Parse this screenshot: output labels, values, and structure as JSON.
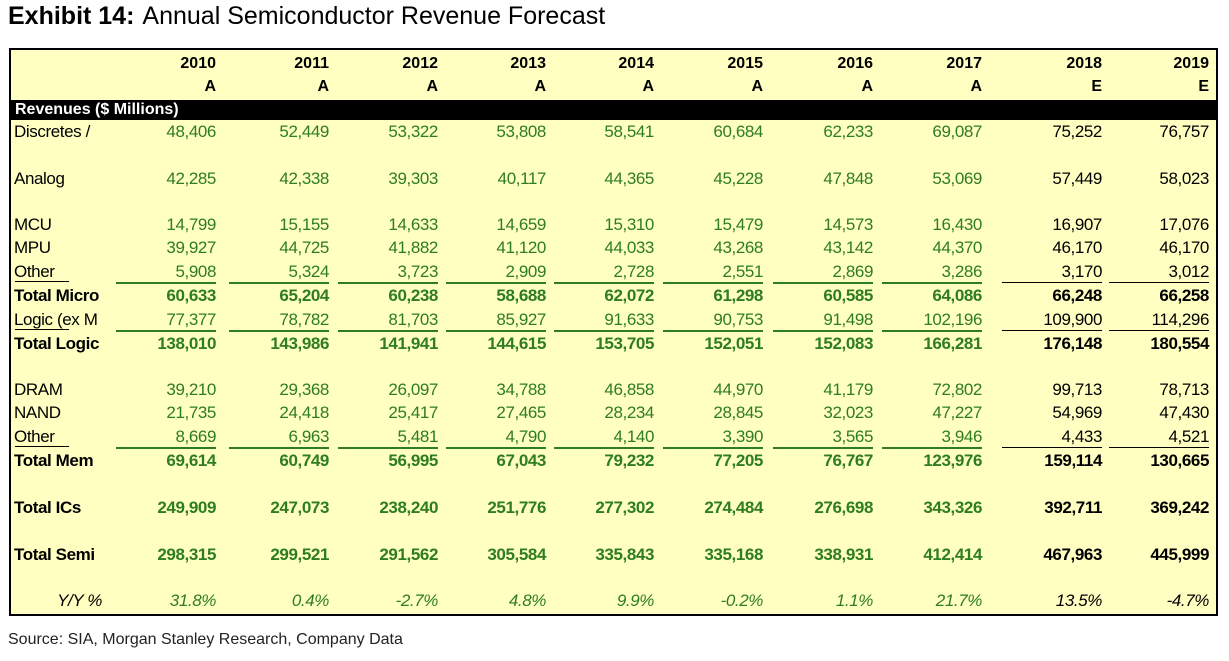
{
  "title": {
    "exhibit": "Exhibit 14:",
    "text": "Annual Semiconductor Revenue Forecast"
  },
  "source": "Source: SIA, Morgan Stanley Research, Company Data",
  "colors": {
    "background": "#ffffc2",
    "actual_text": "#2e7d1f",
    "estimate_text": "#000000",
    "band": "#000000"
  },
  "chart_data": {
    "type": "table",
    "section_header": "Revenues ($ Millions)",
    "years": [
      "2010",
      "2011",
      "2012",
      "2013",
      "2014",
      "2015",
      "2016",
      "2017",
      "2018",
      "2019"
    ],
    "flags": [
      "A",
      "A",
      "A",
      "A",
      "A",
      "A",
      "A",
      "A",
      "E",
      "E"
    ],
    "rows": [
      {
        "label": "Discretes /",
        "values": [
          "48,406",
          "52,449",
          "53,322",
          "53,808",
          "58,541",
          "60,684",
          "62,233",
          "69,087",
          "75,252",
          "76,757"
        ]
      },
      {
        "label": "Analog",
        "values": [
          "42,285",
          "42,338",
          "39,303",
          "40,117",
          "44,365",
          "45,228",
          "47,848",
          "53,069",
          "57,449",
          "58,023"
        ]
      },
      {
        "label": "MCU",
        "values": [
          "14,799",
          "15,155",
          "14,633",
          "14,659",
          "15,310",
          "15,479",
          "14,573",
          "16,430",
          "16,907",
          "17,076"
        ]
      },
      {
        "label": "MPU",
        "values": [
          "39,927",
          "44,725",
          "41,882",
          "41,120",
          "44,033",
          "43,268",
          "43,142",
          "44,370",
          "46,170",
          "46,170"
        ]
      },
      {
        "label": "Other",
        "values": [
          "5,908",
          "5,324",
          "3,723",
          "2,909",
          "2,728",
          "2,551",
          "2,869",
          "3,286",
          "3,170",
          "3,012"
        ]
      },
      {
        "label": "Total Micro",
        "values": [
          "60,633",
          "65,204",
          "60,238",
          "58,688",
          "62,072",
          "61,298",
          "60,585",
          "64,086",
          "66,248",
          "66,258"
        ]
      },
      {
        "label": "Logic (ex M",
        "values": [
          "77,377",
          "78,782",
          "81,703",
          "85,927",
          "91,633",
          "90,753",
          "91,498",
          "102,196",
          "109,900",
          "114,296"
        ]
      },
      {
        "label": "Total Logic",
        "values": [
          "138,010",
          "143,986",
          "141,941",
          "144,615",
          "153,705",
          "152,051",
          "152,083",
          "166,281",
          "176,148",
          "180,554"
        ]
      },
      {
        "label": "DRAM",
        "values": [
          "39,210",
          "29,368",
          "26,097",
          "34,788",
          "46,858",
          "44,970",
          "41,179",
          "72,802",
          "99,713",
          "78,713"
        ]
      },
      {
        "label": "NAND",
        "values": [
          "21,735",
          "24,418",
          "25,417",
          "27,465",
          "28,234",
          "28,845",
          "32,023",
          "47,227",
          "54,969",
          "47,430"
        ]
      },
      {
        "label": "Other",
        "values": [
          "8,669",
          "6,963",
          "5,481",
          "4,790",
          "4,140",
          "3,390",
          "3,565",
          "3,946",
          "4,433",
          "4,521"
        ]
      },
      {
        "label": "Total Mem",
        "values": [
          "69,614",
          "60,749",
          "56,995",
          "67,043",
          "79,232",
          "77,205",
          "76,767",
          "123,976",
          "159,114",
          "130,665"
        ]
      },
      {
        "label": "Total ICs",
        "values": [
          "249,909",
          "247,073",
          "238,240",
          "251,776",
          "277,302",
          "274,484",
          "276,698",
          "343,326",
          "392,711",
          "369,242"
        ]
      },
      {
        "label": "Total Semi",
        "values": [
          "298,315",
          "299,521",
          "291,562",
          "305,584",
          "335,843",
          "335,168",
          "338,931",
          "412,414",
          "467,963",
          "445,999"
        ]
      },
      {
        "label": "Y/Y %",
        "values": [
          "31.8%",
          "0.4%",
          "-2.7%",
          "4.8%",
          "9.9%",
          "-0.2%",
          "1.1%",
          "21.7%",
          "13.5%",
          "-4.7%"
        ]
      }
    ]
  }
}
